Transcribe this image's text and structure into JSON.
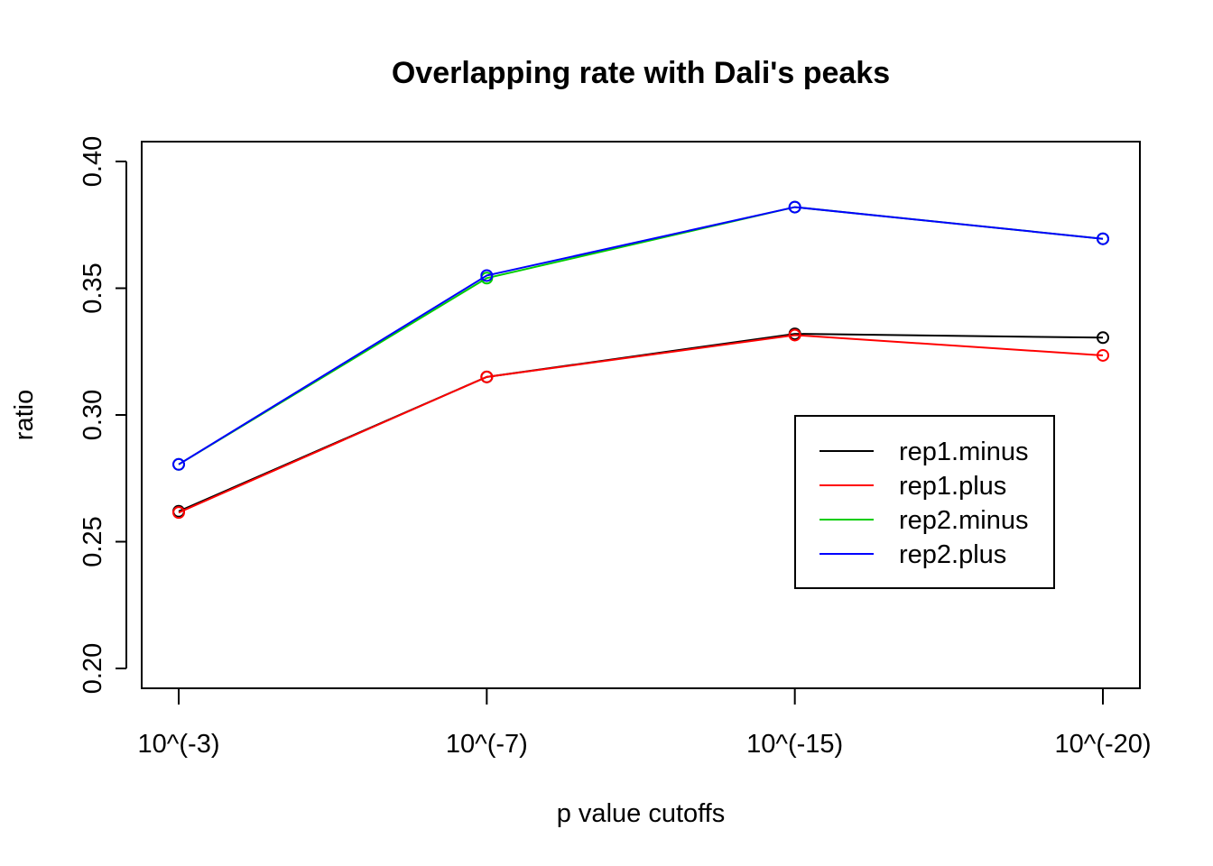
{
  "chart_data": {
    "type": "line",
    "title": "Overlapping rate with Dali's peaks",
    "xlabel": "p value cutoffs",
    "ylabel": "ratio",
    "categories": [
      "10^(-3)",
      "10^(-7)",
      "10^(-15)",
      "10^(-20)"
    ],
    "ylim": [
      0.2,
      0.4
    ],
    "yticks": [
      "0.20",
      "0.25",
      "0.30",
      "0.35",
      "0.40"
    ],
    "grid": false,
    "legend_position": "right",
    "series": [
      {
        "name": "rep1.minus",
        "color": "#000000",
        "values": [
          0.262,
          0.315,
          0.332,
          0.3305
        ]
      },
      {
        "name": "rep1.plus",
        "color": "#ff0000",
        "values": [
          0.2615,
          0.315,
          0.3315,
          0.3235
        ]
      },
      {
        "name": "rep2.minus",
        "color": "#00cd00",
        "values": [
          0.2805,
          0.354,
          0.382,
          0.3695
        ]
      },
      {
        "name": "rep2.plus",
        "color": "#0000ff",
        "values": [
          0.2805,
          0.355,
          0.382,
          0.3695
        ]
      }
    ]
  }
}
